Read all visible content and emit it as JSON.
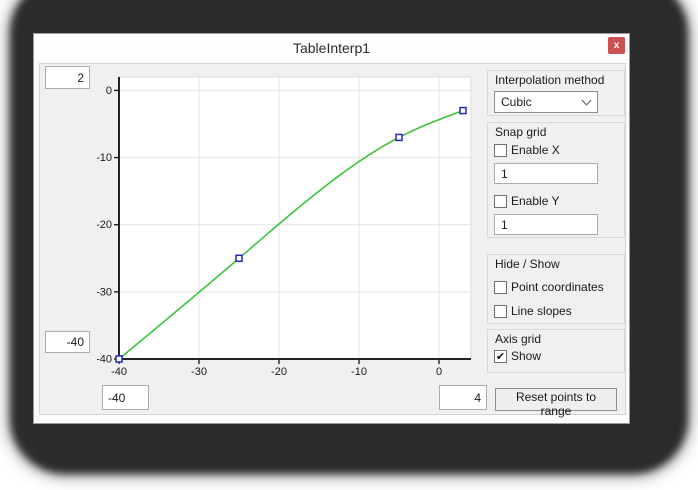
{
  "window": {
    "title": "TableInterp1",
    "close_label": "x",
    "close_color": "#cd5152"
  },
  "range_fields": {
    "y_max": "2",
    "y_min": "-40",
    "x_min": "-40",
    "x_max": "4"
  },
  "chart_data": {
    "type": "line",
    "interpolation": "cubic",
    "points": [
      {
        "x": -40,
        "y": -40
      },
      {
        "x": -25,
        "y": -25
      },
      {
        "x": -5,
        "y": -7
      },
      {
        "x": 3,
        "y": -3
      }
    ],
    "xlim": [
      -40,
      4
    ],
    "ylim": [
      -40,
      2
    ],
    "x_ticks": [
      -40,
      -30,
      -20,
      -10,
      0
    ],
    "y_ticks": [
      0,
      -10,
      -20,
      -30,
      -40
    ],
    "grid": true,
    "grid_color": "#e4e4e4",
    "axis_color": "#222222",
    "curve_color": "#3bc43b",
    "marker_color": "#2424c8",
    "plot_bg": "#ffffff"
  },
  "panel": {
    "interpolation": {
      "label": "Interpolation method",
      "selected": "Cubic"
    },
    "snap_grid": {
      "label": "Snap grid",
      "enable_x": {
        "label": "Enable X",
        "checked": false
      },
      "x_step": "1",
      "enable_y": {
        "label": "Enable Y",
        "checked": false
      },
      "y_step": "1"
    },
    "hide_show": {
      "label": "Hide / Show",
      "point_coordinates": {
        "label": "Point coordinates",
        "checked": false
      },
      "line_slopes": {
        "label": "Line slopes",
        "checked": false
      }
    },
    "axis_grid": {
      "label": "Axis grid",
      "show": {
        "label": "Show",
        "checked": true
      }
    },
    "reset_button_label": "Reset points to range"
  }
}
